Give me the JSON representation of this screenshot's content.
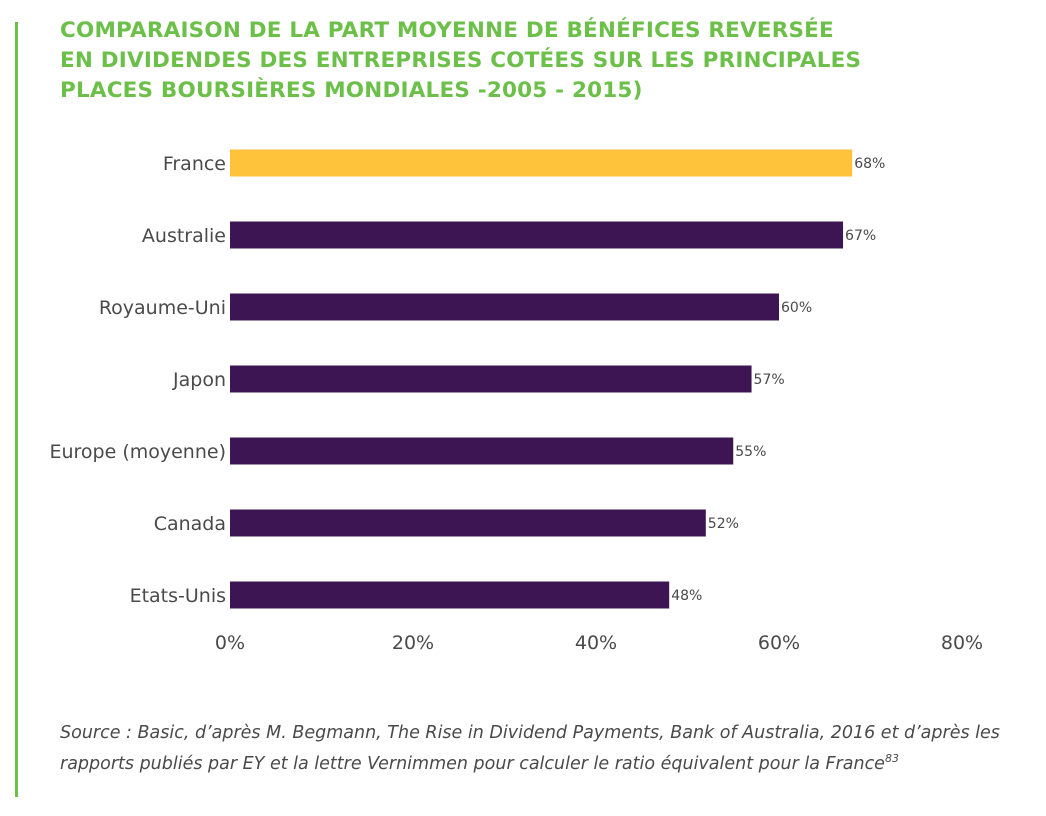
{
  "title_lines": [
    "COMPARAISON DE LA PART MOYENNE DE BÉNÉFICES REVERSÉE",
    "EN DIVIDENDES DES ENTREPRISES COTÉES SUR LES PRINCIPALES",
    "PLACES BOURSIÈRES MONDIALES -2005 - 2015)"
  ],
  "chart_data": {
    "type": "bar",
    "orientation": "horizontal",
    "categories": [
      "France",
      "Australie",
      "Royaume-Uni",
      "Japon",
      "Europe (moyenne)",
      "Canada",
      "Etats-Unis"
    ],
    "values": [
      68,
      67,
      60,
      57,
      55,
      52,
      48
    ],
    "data_labels": [
      "68%",
      "67%",
      "60%",
      "57%",
      "55%",
      "52%",
      "48%"
    ],
    "xlim": [
      0,
      80
    ],
    "x_ticks": [
      0,
      20,
      40,
      60,
      80
    ],
    "x_tick_labels": [
      "0%",
      "20%",
      "40%",
      "60%",
      "80%"
    ],
    "grid": false,
    "legend": "none",
    "colors": {
      "highlight": "#ffc23a",
      "default": "#3d1553",
      "highlight_category": "France"
    }
  },
  "source": {
    "text": "Source : Basic, d’après M. Begmann, The Rise in Dividend Payments, Bank of Australia, 2016 et d’après les rapports publiés par EY et la lettre Vernimmen pour calculer le ratio équivalent pour la France",
    "footnote": "83"
  },
  "colors": {
    "accent": "#6cc04a",
    "text": "#4a4a4a"
  }
}
